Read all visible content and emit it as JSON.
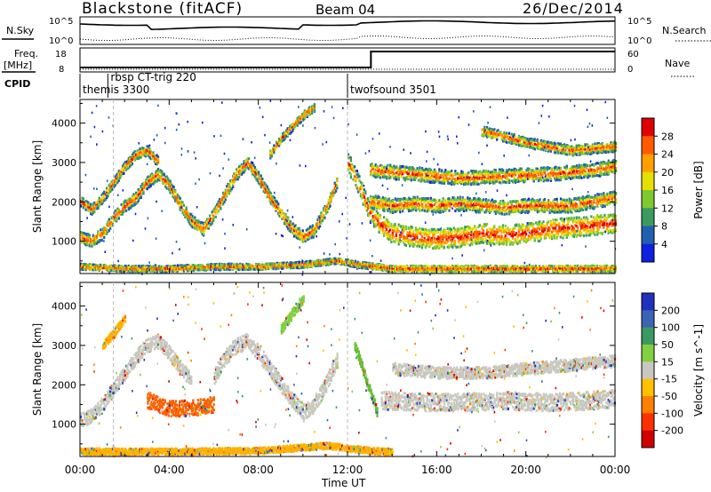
{
  "header": {
    "station": "Blackstone (fitACF)",
    "beam": "Beam 04",
    "date": "26/Dec/2014"
  },
  "top_panels": {
    "nsky_label": "N.Sky",
    "nsky_ticks": [
      "10^5",
      "10^0"
    ],
    "nsearch_label": "N.Search",
    "nsearch_ticks": [
      "10^5",
      "10^0"
    ],
    "freq_label": "Freq.",
    "freq_unit": "[MHz]",
    "freq_ticks": [
      "18",
      "8"
    ],
    "nave_label": "Nave",
    "nave_ticks": [
      "60",
      "0"
    ],
    "cpid_label": "CPID"
  },
  "cpid_segments": [
    {
      "label": "themis 3300",
      "start_hour": 0.0
    },
    {
      "label": "rbsp CT-trig 220",
      "start_hour": 1.25
    },
    {
      "label": "twofsound 3501",
      "start_hour": 12.0
    }
  ],
  "chart_data": [
    {
      "type": "heatmap",
      "panel": "power",
      "ylabel": "Slant Range [km]",
      "xlabel": "Time UT",
      "x_ticks": [
        "00:00",
        "04:00",
        "08:00",
        "12:00",
        "16:00",
        "20:00",
        "00:00"
      ],
      "xlim_hours": [
        0,
        24
      ],
      "y_ticks": [
        1000,
        2000,
        3000,
        4000
      ],
      "ylim": [
        180,
        4600
      ],
      "colorbar": {
        "label": "Power [dB]",
        "ticks": [
          "28",
          "24",
          "20",
          "16",
          "12",
          "8",
          "4"
        ],
        "colors": [
          "#e00000",
          "#ff5a00",
          "#ffa000",
          "#e6e000",
          "#80c830",
          "#3c9a60",
          "#2060b0",
          "#1020e0"
        ]
      }
    },
    {
      "type": "heatmap",
      "panel": "velocity",
      "ylabel": "Slant Range [km]",
      "xlabel": "Time UT",
      "x_ticks": [
        "00:00",
        "04:00",
        "08:00",
        "12:00",
        "16:00",
        "20:00",
        "00:00"
      ],
      "xlim_hours": [
        0,
        24
      ],
      "y_ticks": [
        1000,
        2000,
        3000,
        4000
      ],
      "ylim": [
        180,
        4600
      ],
      "colorbar": {
        "label": "Velocity [m s^-1]",
        "ticks": [
          "200",
          "100",
          "50",
          "15",
          "-15",
          "-50",
          "-100",
          "-200"
        ],
        "colors": [
          "#2030c0",
          "#3c64b4",
          "#3c9a60",
          "#80d040",
          "#c8c8c0",
          "#ffc000",
          "#ff8000",
          "#ff3000",
          "#d00000"
        ]
      }
    }
  ],
  "bands": {
    "power": [
      {
        "pts": [
          [
            0,
            1100
          ],
          [
            0.5,
            1000
          ],
          [
            1.0,
            1200
          ],
          [
            1.5,
            1600
          ],
          [
            2.0,
            1900
          ],
          [
            2.5,
            2100
          ],
          [
            3.0,
            2500
          ],
          [
            3.5,
            2700
          ],
          [
            4.0,
            2400
          ],
          [
            4.5,
            1900
          ],
          [
            5.0,
            1500
          ],
          [
            5.5,
            1300
          ]
        ],
        "w": 300
      },
      {
        "pts": [
          [
            0,
            2000
          ],
          [
            0.5,
            1800
          ],
          [
            1.0,
            2100
          ],
          [
            1.5,
            2500
          ],
          [
            2.0,
            2900
          ],
          [
            2.5,
            3200
          ],
          [
            3.0,
            3300
          ],
          [
            3.5,
            3000
          ]
        ],
        "w": 250
      },
      {
        "pts": [
          [
            5.5,
            1300
          ],
          [
            6.0,
            1700
          ],
          [
            6.5,
            2200
          ],
          [
            7.0,
            2700
          ],
          [
            7.5,
            3000
          ],
          [
            8.0,
            2600
          ],
          [
            8.5,
            2100
          ],
          [
            9.0,
            1700
          ],
          [
            9.5,
            1300
          ],
          [
            10.0,
            1100
          ],
          [
            10.5,
            1300
          ],
          [
            11.0,
            1800
          ],
          [
            11.5,
            2500
          ]
        ],
        "w": 300
      },
      {
        "pts": [
          [
            8.5,
            3200
          ],
          [
            9.0,
            3600
          ],
          [
            9.5,
            3900
          ],
          [
            10.0,
            4200
          ],
          [
            10.5,
            4400
          ]
        ],
        "w": 200
      },
      {
        "pts": [
          [
            12.0,
            3000
          ],
          [
            12.5,
            2400
          ],
          [
            13.0,
            1700
          ],
          [
            13.5,
            1400
          ],
          [
            14.0,
            1200
          ],
          [
            15.0,
            1100
          ],
          [
            16.0,
            1050
          ],
          [
            17.0,
            1100
          ],
          [
            18.0,
            1200
          ],
          [
            19.0,
            1150
          ],
          [
            20.0,
            1200
          ],
          [
            21.0,
            1300
          ],
          [
            22.0,
            1350
          ],
          [
            23.0,
            1400
          ],
          [
            24.0,
            1450
          ]
        ],
        "w": 500
      },
      {
        "pts": [
          [
            13.0,
            2000
          ],
          [
            14.0,
            1900
          ],
          [
            15.0,
            1950
          ],
          [
            16.0,
            1900
          ],
          [
            17.0,
            1950
          ],
          [
            18.0,
            1900
          ],
          [
            19.0,
            1850
          ],
          [
            20.0,
            1900
          ],
          [
            21.0,
            1900
          ],
          [
            22.0,
            1900
          ],
          [
            23.0,
            2000
          ],
          [
            24.0,
            2100
          ]
        ],
        "w": 350
      },
      {
        "pts": [
          [
            13.0,
            2800
          ],
          [
            15.0,
            2700
          ],
          [
            17.0,
            2600
          ],
          [
            19.0,
            2650
          ],
          [
            21.0,
            2700
          ],
          [
            23.0,
            2800
          ],
          [
            24.0,
            2900
          ]
        ],
        "w": 350
      },
      {
        "pts": [
          [
            18.0,
            3800
          ],
          [
            20.0,
            3500
          ],
          [
            22.0,
            3300
          ],
          [
            24.0,
            3400
          ]
        ],
        "w": 250
      },
      {
        "pts": [
          [
            0,
            350
          ],
          [
            2,
            300
          ],
          [
            4,
            300
          ],
          [
            6,
            350
          ],
          [
            8,
            350
          ],
          [
            10,
            400
          ],
          [
            11.5,
            500
          ],
          [
            12.5,
            400
          ],
          [
            14,
            300
          ],
          [
            18,
            300
          ],
          [
            24,
            300
          ]
        ],
        "w": 150
      }
    ],
    "velocity": [
      {
        "pts": [
          [
            0,
            1100
          ],
          [
            0.5,
            1200
          ],
          [
            1.0,
            1500
          ],
          [
            1.5,
            1900
          ],
          [
            2.0,
            2300
          ],
          [
            2.5,
            2700
          ],
          [
            3.0,
            3000
          ],
          [
            3.5,
            3100
          ],
          [
            4.0,
            2800
          ],
          [
            4.5,
            2400
          ],
          [
            5.0,
            2100
          ]
        ],
        "w": 350,
        "c": "#c8c8c0"
      },
      {
        "pts": [
          [
            3.0,
            1600
          ],
          [
            4.0,
            1400
          ],
          [
            5.0,
            1400
          ],
          [
            6.0,
            1500
          ]
        ],
        "w": 400,
        "c": "#ff6000"
      },
      {
        "pts": [
          [
            6.0,
            2200
          ],
          [
            6.5,
            2700
          ],
          [
            7.0,
            3000
          ],
          [
            7.5,
            3100
          ],
          [
            8.0,
            2800
          ],
          [
            8.5,
            2400
          ],
          [
            9.0,
            2000
          ],
          [
            9.5,
            1600
          ],
          [
            10.0,
            1300
          ],
          [
            10.5,
            1500
          ],
          [
            11.0,
            2000
          ],
          [
            11.5,
            2600
          ]
        ],
        "w": 400,
        "c": "#c8c8c0"
      },
      {
        "pts": [
          [
            9.0,
            3400
          ],
          [
            9.5,
            3800
          ],
          [
            10.0,
            4200
          ]
        ],
        "w": 250,
        "c": "#80d040"
      },
      {
        "pts": [
          [
            13.5,
            1600
          ],
          [
            15.0,
            1550
          ],
          [
            17.0,
            1550
          ],
          [
            19.0,
            1600
          ],
          [
            21.0,
            1550
          ],
          [
            23.0,
            1600
          ],
          [
            24.0,
            1650
          ]
        ],
        "w": 450,
        "c": "#c8c8c0"
      },
      {
        "pts": [
          [
            14.0,
            2400
          ],
          [
            16.0,
            2300
          ],
          [
            18.0,
            2300
          ],
          [
            20.0,
            2400
          ],
          [
            22.0,
            2500
          ],
          [
            24.0,
            2600
          ]
        ],
        "w": 300,
        "c": "#c8c8c0"
      },
      {
        "pts": [
          [
            12.3,
            3000
          ],
          [
            12.6,
            2500
          ],
          [
            13.0,
            1800
          ],
          [
            13.3,
            1300
          ]
        ],
        "w": 250,
        "c": "#60c030"
      },
      {
        "pts": [
          [
            0,
            300
          ],
          [
            4,
            300
          ],
          [
            8,
            320
          ],
          [
            11,
            450
          ],
          [
            12.5,
            350
          ],
          [
            14,
            280
          ]
        ],
        "w": 160,
        "c": "#ffb000"
      },
      {
        "pts": [
          [
            1.0,
            3000
          ],
          [
            1.5,
            3300
          ],
          [
            2.0,
            3700
          ]
        ],
        "w": 200,
        "c": "#ffb000"
      }
    ]
  }
}
